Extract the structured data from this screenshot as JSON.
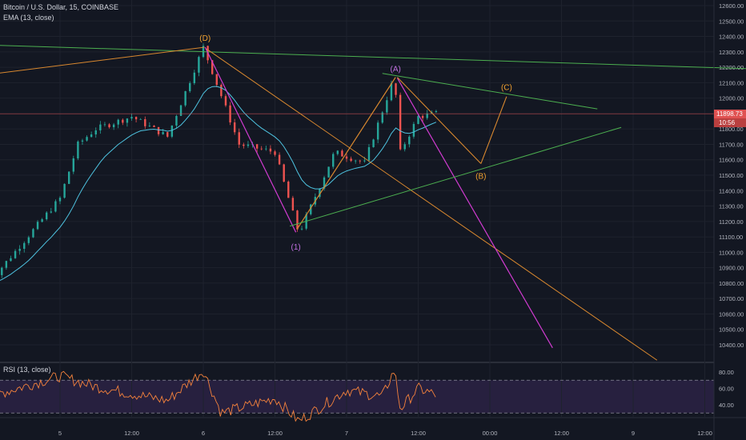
{
  "header": {
    "symbol_label": "Bitcoin / U.S. Dollar, 15, COINBASE",
    "ema_label": "EMA (13, close)",
    "rsi_label": "RSI (13, close)"
  },
  "price_axis": {
    "ticks": [
      12600,
      12500,
      12400,
      12300,
      12200,
      12100,
      12000,
      11900,
      11800,
      11700,
      11600,
      11500,
      11400,
      11300,
      11200,
      11100,
      11000,
      10900,
      10800,
      10700,
      10600,
      10500,
      10400
    ],
    "tick_labels": [
      "12600.00",
      "12500.00",
      "12400.00",
      "12300.00",
      "12200.00",
      "12100.00",
      "12000.00",
      "11900.00",
      "11800.00",
      "11700.00",
      "11600.00",
      "11500.00",
      "11400.00",
      "11300.00",
      "11200.00",
      "11100.00",
      "11000.00",
      "10900.00",
      "10800.00",
      "10700.00",
      "10600.00",
      "10500.00",
      "10400.00"
    ],
    "current_price": "11898.73",
    "countdown": "10:56"
  },
  "rsi_axis": {
    "tick_labels": [
      "80.00",
      "60.00",
      "40.00"
    ],
    "ticks": [
      80,
      60,
      40
    ],
    "bands": [
      70,
      30
    ]
  },
  "time_axis": {
    "labels": [
      "5",
      "12:00",
      "6",
      "12:00",
      "7",
      "12:00",
      "00:00",
      "12:00",
      "9",
      "12:00"
    ]
  },
  "annotations": {
    "D": "(D)",
    "A": "(A)",
    "B": "(B)",
    "C": "(C)",
    "one": "(1)"
  },
  "colors": {
    "background": "#131722",
    "up_candle": "#26a69a",
    "down_candle": "#ef5350",
    "ema": "#4ec3e0",
    "rsi": "#f5823c",
    "trend_green": "#4caf50",
    "trend_orange": "#d9882f",
    "trend_magenta": "#d13bd1",
    "price_line": "#e05252",
    "label_orange": "#f0a030",
    "label_purple": "#c070e0"
  },
  "chart_data": {
    "type": "candlestick",
    "title": "Bitcoin / U.S. Dollar, 15, COINBASE",
    "indicators": [
      "EMA (13, close)",
      "RSI (13, close)"
    ],
    "ylim": [
      10300,
      12650
    ],
    "last_price": 11898.73,
    "path_points": [
      {
        "x": "Aug 4 12:00",
        "y": 10800
      },
      {
        "x": "Aug 5 00:00",
        "y": 11350
      },
      {
        "x": "Aug 5 03:00",
        "y": 11700
      },
      {
        "x": "Aug 5 06:00",
        "y": 11800
      },
      {
        "x": "Aug 5 12:00",
        "y": 11880
      },
      {
        "x": "Aug 5 18:00",
        "y": 11750
      },
      {
        "x": "Aug 6 00:00",
        "y": 12330
      },
      {
        "x": "Aug 6 06:00",
        "y": 11700
      },
      {
        "x": "Aug 6 12:00",
        "y": 11650
      },
      {
        "x": "Aug 6 16:00",
        "y": 11120
      },
      {
        "x": "Aug 6 22:00",
        "y": 11650
      },
      {
        "x": "Aug 7 03:00",
        "y": 11580
      },
      {
        "x": "Aug 7 08:00",
        "y": 12140
      },
      {
        "x": "Aug 7 09:00",
        "y": 11650
      },
      {
        "x": "Aug 7 12:00",
        "y": 11880
      },
      {
        "x": "Aug 7 15:00",
        "y": 11900
      }
    ],
    "rsi_points": [
      {
        "x": "Aug 4 12:00",
        "y": 50
      },
      {
        "x": "Aug 5 00:00",
        "y": 75
      },
      {
        "x": "Aug 5 06:00",
        "y": 62
      },
      {
        "x": "Aug 5 18:00",
        "y": 45
      },
      {
        "x": "Aug 6 00:00",
        "y": 82
      },
      {
        "x": "Aug 6 03:00",
        "y": 30
      },
      {
        "x": "Aug 6 12:00",
        "y": 48
      },
      {
        "x": "Aug 6 16:00",
        "y": 20
      },
      {
        "x": "Aug 7 00:00",
        "y": 58
      },
      {
        "x": "Aug 7 06:00",
        "y": 50
      },
      {
        "x": "Aug 7 08:00",
        "y": 83
      },
      {
        "x": "Aug 7 09:00",
        "y": 35
      },
      {
        "x": "Aug 7 12:00",
        "y": 60
      },
      {
        "x": "Aug 7 15:00",
        "y": 52
      }
    ],
    "wave_labels": [
      {
        "label": "(D)",
        "x": "Aug 6 00:15",
        "y": 12330
      },
      {
        "label": "(1)",
        "x": "Aug 6 16:00",
        "y": 11120
      },
      {
        "label": "(A)",
        "x": "Aug 7 08:00",
        "y": 12140
      },
      {
        "label": "(B)",
        "x": "Aug 7 22:00",
        "y": 11570
      },
      {
        "label": "(C)",
        "x": "Aug 8 03:00",
        "y": 12000
      }
    ]
  }
}
